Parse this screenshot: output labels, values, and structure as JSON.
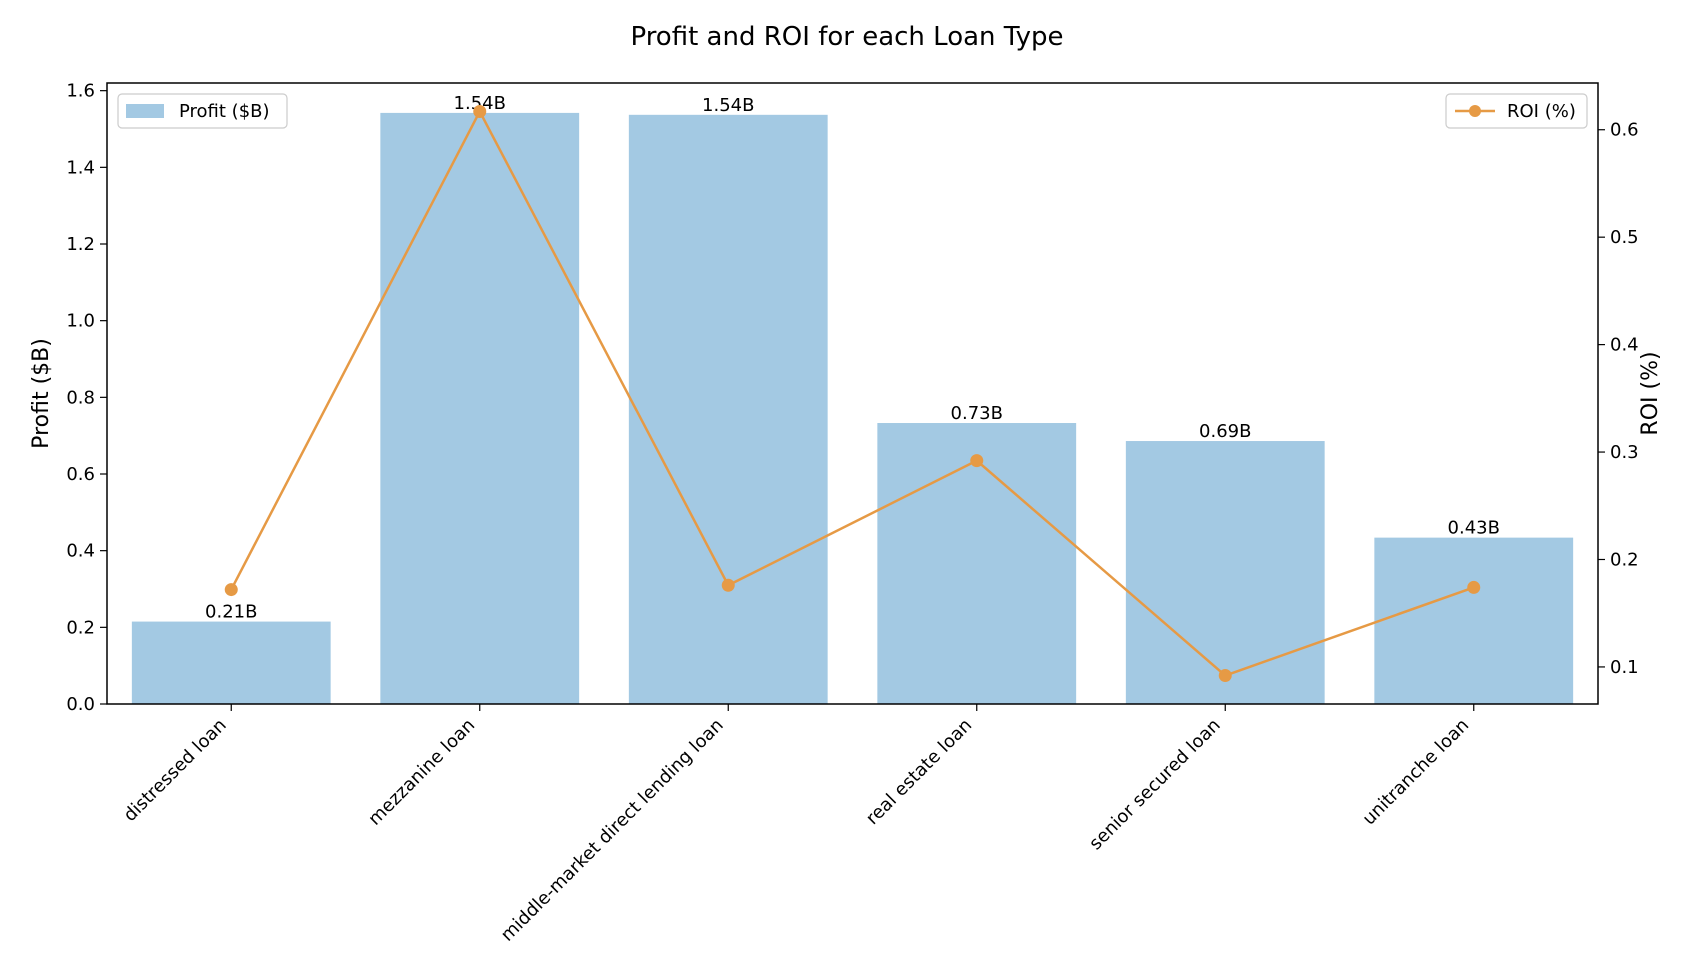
{
  "chart_data": {
    "type": "bar",
    "title": "Profit and ROI for each Loan Type",
    "xlabel": "",
    "categories": [
      "distressed loan",
      "mezzanine loan",
      "middle-market direct lending loan",
      "real estate loan",
      "senior secured loan",
      "unitranche loan"
    ],
    "series": [
      {
        "name": "Profit ($B)",
        "type": "bar",
        "axis": "left",
        "values": [
          0.215,
          1.542,
          1.537,
          0.733,
          0.686,
          0.434
        ],
        "data_labels": [
          "0.21B",
          "1.54B",
          "1.54B",
          "0.73B",
          "0.69B",
          "0.43B"
        ]
      },
      {
        "name": "ROI (%)",
        "type": "line",
        "axis": "right",
        "markers": true,
        "values": [
          0.172,
          0.617,
          0.176,
          0.292,
          0.092,
          0.174
        ]
      }
    ],
    "ylabel": "Profit ($B)",
    "ylim": [
      0,
      1.62
    ],
    "yticks": [
      "0.0",
      "0.2",
      "0.4",
      "0.6",
      "0.8",
      "1.0",
      "1.2",
      "1.4",
      "1.6"
    ],
    "y2label": "ROI (%)",
    "y2lim": [
      0.0655,
      0.6435
    ],
    "y2ticks": [
      "0.1",
      "0.2",
      "0.3",
      "0.4",
      "0.5",
      "0.6"
    ],
    "legend_left_position": "upper-left",
    "legend_right_position": "upper-right",
    "grid": false,
    "colors": {
      "bar": "#a3c9e3",
      "line": "#e69a45",
      "axis": "#000000"
    }
  }
}
